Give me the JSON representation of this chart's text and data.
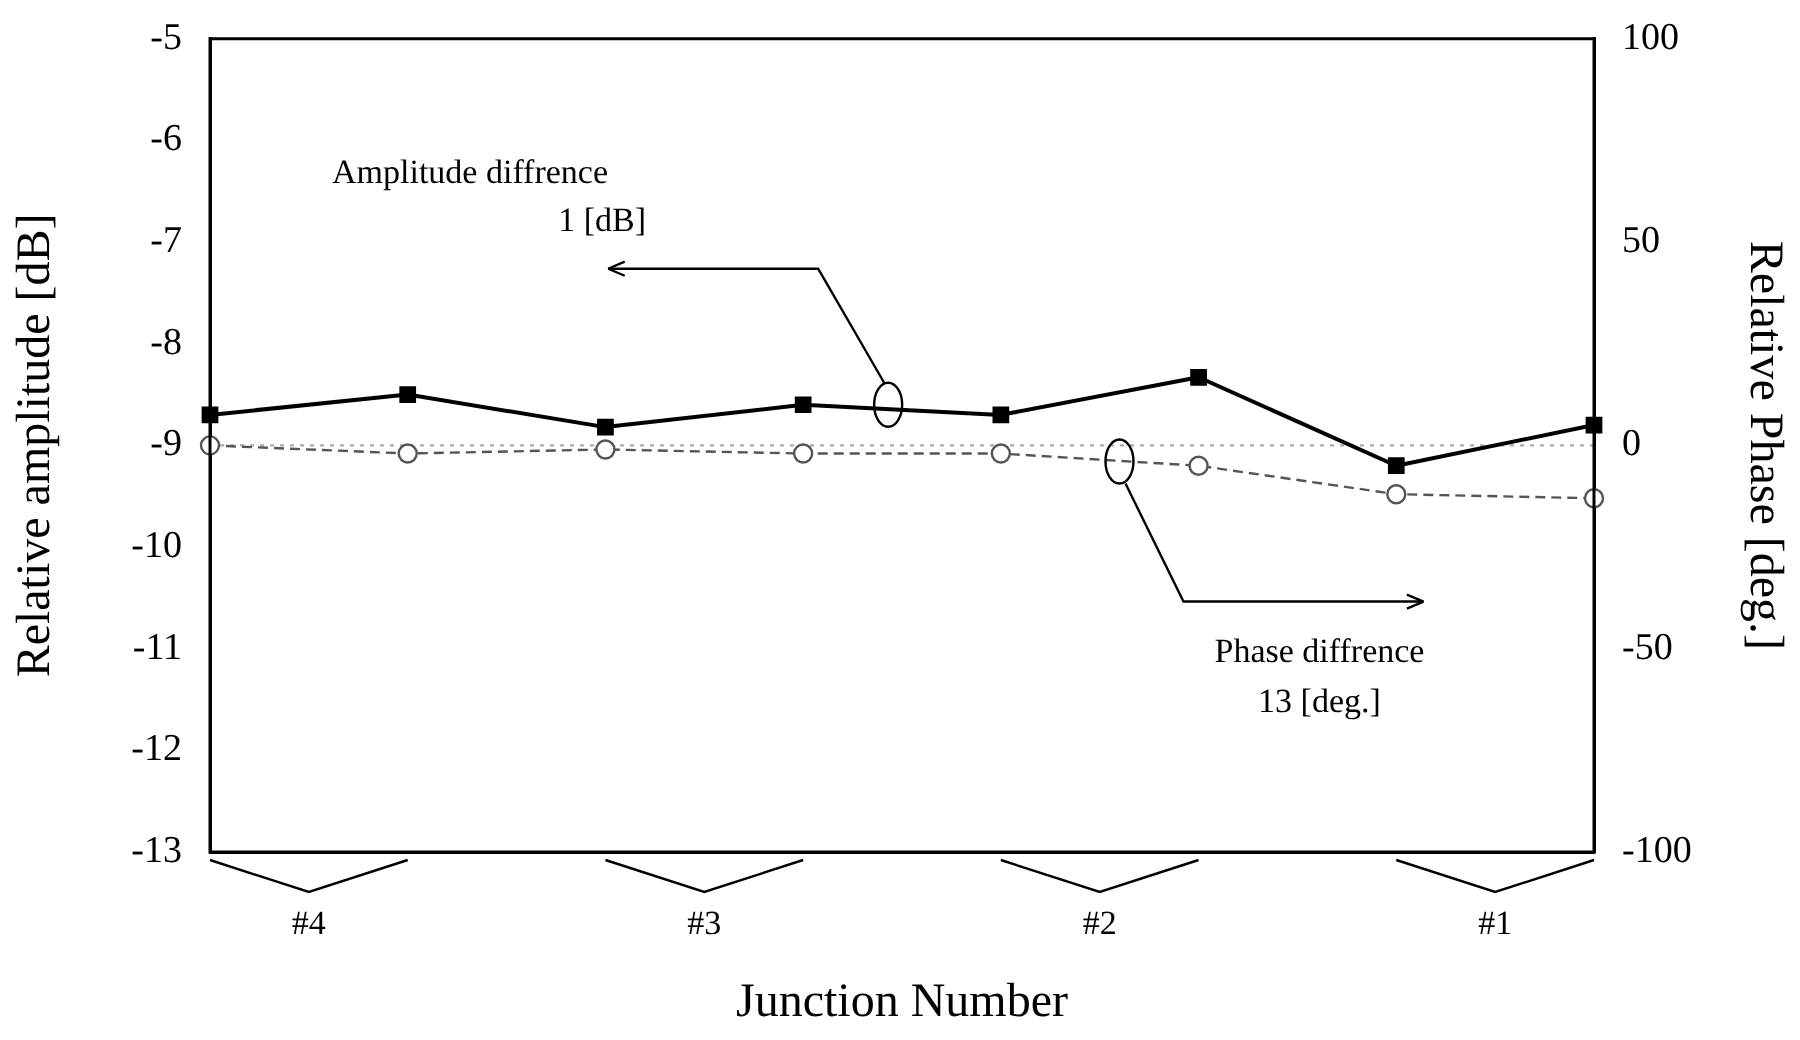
{
  "chart_data": {
    "type": "line",
    "xlabel": "Junction Number",
    "ylabel": "Relative amplitude [dB]",
    "y2label": "Relative Phase [deg.]",
    "categories": [
      null,
      null,
      null,
      null,
      null,
      null,
      null,
      null
    ],
    "series": [
      {
        "color": "#000000",
        "values": [
          -8.7,
          -8.5,
          -8.82,
          -8.6,
          -8.7,
          -8.33,
          -9.2,
          -8.8
        ],
        "marker": "square",
        "line_style": "solid"
      },
      {
        "color": "#555555",
        "values": [
          0,
          -2,
          -1,
          -2,
          -2,
          -5,
          -12,
          -13
        ],
        "axis": "y2",
        "marker": "circle",
        "line_style": "dashed"
      }
    ],
    "ylim": [
      -13,
      -5
    ],
    "yticks": [
      -13,
      -12,
      -11,
      -10,
      -9,
      -8,
      -7,
      -6,
      -5
    ],
    "y2lim": [
      -100,
      100
    ],
    "y2ticks": [
      -100,
      -50,
      0,
      50,
      100
    ],
    "ref_lines": [
      {
        "axis": "y2",
        "value": 0,
        "color": "#aaaaaa",
        "line_style": "dotted"
      }
    ],
    "annotations": [
      "Amplitude diffrence\n1 [dB]",
      "Phase diffrence\n13 [deg.]",
      "#4",
      "#3",
      "#2",
      "#1"
    ],
    "grid": false,
    "legend": false
  }
}
